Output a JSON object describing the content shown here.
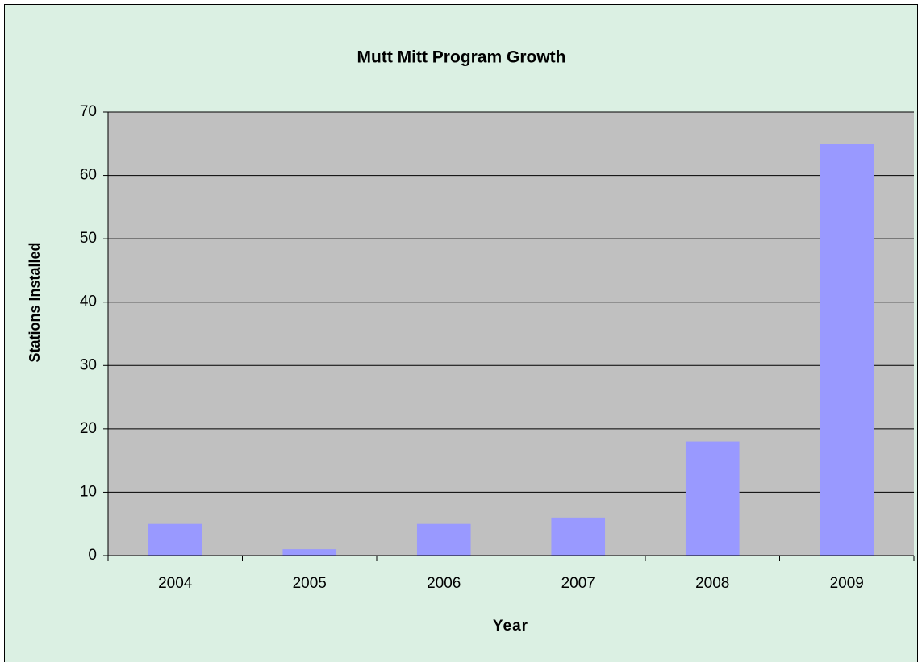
{
  "chart_data": {
    "type": "bar",
    "title": "Mutt Mitt Program Growth",
    "x_label": "Year",
    "y_label": "Stations Installed",
    "categories": [
      "2004",
      "2005",
      "2006",
      "2007",
      "2008",
      "2009"
    ],
    "values": [
      5,
      1,
      5,
      6,
      18,
      65
    ],
    "color": "#9999ff",
    "ylim": [
      0,
      70
    ],
    "yticks": [
      0,
      10,
      20,
      30,
      40,
      50,
      60,
      70
    ],
    "grid": true
  }
}
